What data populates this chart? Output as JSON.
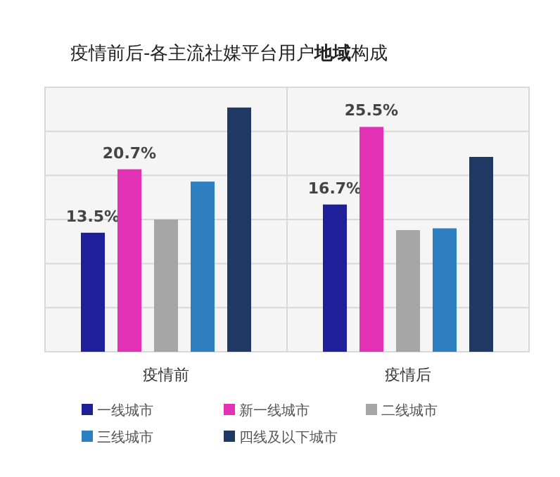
{
  "chart_data": {
    "type": "bar",
    "title": "疫情前后-各主流社媒平台用户**地域**构成",
    "categories": [
      "疫情前",
      "疫情后"
    ],
    "series": [
      {
        "name": "一线城市",
        "color": "#1f1f9a",
        "values": [
          13.5,
          16.7
        ],
        "value_labels": [
          "13.5%",
          "16.7%"
        ]
      },
      {
        "name": "新一线城市",
        "color": "#e331b5",
        "values": [
          20.7,
          25.5
        ],
        "value_labels": [
          "20.7%",
          "25.5%"
        ]
      },
      {
        "name": "二线城市",
        "color": "#a6a6a6",
        "values": [
          15,
          13.8
        ]
      },
      {
        "name": "三线城市",
        "color": "#2e7fc0",
        "values": [
          19.3,
          14
        ]
      },
      {
        "name": "四线及以下城市",
        "color": "#203864",
        "values": [
          27.7,
          22.1
        ]
      }
    ],
    "ylim": [
      0,
      30
    ],
    "yticks": [
      {
        "value": 0,
        "label": null
      },
      {
        "value": 5,
        "label": null
      },
      {
        "value": 10,
        "label": null
      },
      {
        "value": 15,
        "label": null
      },
      {
        "value": 20,
        "label": null
      },
      {
        "value": 25,
        "label": null
      },
      {
        "value": 30,
        "label": null
      }
    ],
    "grid": true,
    "legend": "bottom"
  }
}
